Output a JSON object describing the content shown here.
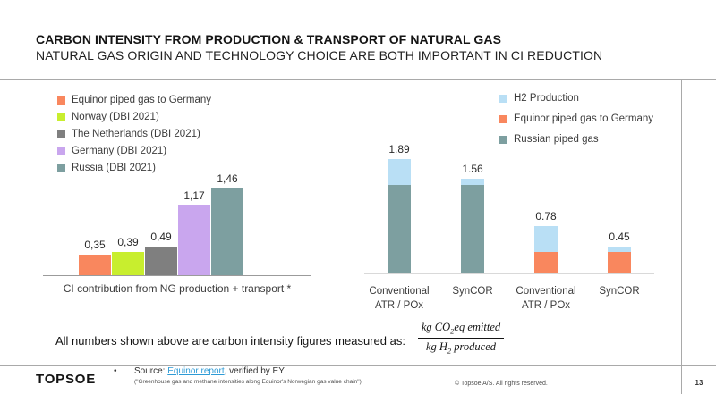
{
  "slide": {
    "title": "CARBON INTENSITY FROM PRODUCTION & TRANSPORT OF NATURAL GAS",
    "subtitle": "NATURAL GAS ORIGIN AND TECHNOLOGY CHOICE ARE BOTH IMPORTANT IN CI REDUCTION"
  },
  "colors": {
    "orange": "#F9875E",
    "lime": "#C8EE2E",
    "gray": "#7F7F7F",
    "purple": "#C9A6EE",
    "teal": "#7D9FA0",
    "lightblue": "#B9DFF5",
    "link_blue": "#2E9BD6"
  },
  "legend_left": {
    "items": [
      {
        "label": "Equinor piped gas to Germany",
        "color": "#F9875E"
      },
      {
        "label": "Norway (DBI 2021)",
        "color": "#C8EE2E"
      },
      {
        "label": "The Netherlands (DBI 2021)",
        "color": "#7F7F7F"
      },
      {
        "label": "Germany (DBI 2021)",
        "color": "#C9A6EE"
      },
      {
        "label": "Russia (DBI 2021)",
        "color": "#7D9FA0"
      }
    ]
  },
  "legend_right": {
    "items": [
      {
        "label": "H2 Production",
        "color": "#B9DFF5"
      },
      {
        "label": "Equinor piped gas to Germany",
        "color": "#F9875E"
      },
      {
        "label": "Russian piped gas",
        "color": "#7D9FA0"
      }
    ]
  },
  "chart_data": [
    {
      "type": "bar",
      "title": "",
      "xlabel": "CI contribution from NG production + transport *",
      "ylabel": "",
      "categories": [
        "Equinor piped gas to Germany",
        "Norway (DBI 2021)",
        "The Netherlands (DBI 2021)",
        "Germany (DBI 2021)",
        "Russia (DBI 2021)"
      ],
      "values": [
        0.35,
        0.39,
        0.49,
        1.17,
        1.46
      ],
      "value_labels": [
        "0,35",
        "0,39",
        "0,49",
        "1,17",
        "1,46"
      ],
      "bar_colors": [
        "#F9875E",
        "#C8EE2E",
        "#7F7F7F",
        "#C9A6EE",
        "#7D9FA0"
      ],
      "ylim": [
        0,
        2.0
      ],
      "grid": false,
      "legend_position": "top-left"
    },
    {
      "type": "bar",
      "stacked": true,
      "title": "",
      "xlabel": "",
      "ylabel": "",
      "categories": [
        "Conventional ATR / POx",
        "SynCOR",
        "Conventional ATR / POx",
        "SynCOR"
      ],
      "category_lines": [
        [
          "Conventional",
          "ATR / POx"
        ],
        [
          "SynCOR"
        ],
        [
          "Conventional",
          "ATR / POx"
        ],
        [
          "SynCOR"
        ]
      ],
      "series": [
        {
          "name": "Russian piped gas",
          "color": "#7D9FA0",
          "values": [
            1.46,
            1.46,
            0,
            0
          ]
        },
        {
          "name": "Equinor piped gas to Germany",
          "color": "#F9875E",
          "values": [
            0,
            0,
            0.35,
            0.35
          ]
        },
        {
          "name": "H2 Production",
          "color": "#B9DFF5",
          "values": [
            0.43,
            0.1,
            0.43,
            0.1
          ]
        }
      ],
      "totals": [
        1.89,
        1.56,
        0.78,
        0.45
      ],
      "total_labels": [
        "1.89",
        "1.56",
        "0.78",
        "0.45"
      ],
      "ylim": [
        0,
        2.0
      ],
      "grid": false,
      "legend_position": "top-right"
    }
  ],
  "formula": {
    "lead": "All numbers shown above are carbon intensity figures measured as:",
    "num_pre": "kg CO",
    "num_sub": "2",
    "num_post": "eq emitted",
    "den_pre": "kg H",
    "den_sub": "2",
    "den_post": " produced"
  },
  "footer": {
    "logo": "TOPSOE",
    "bullet": "•",
    "source_prefix": "Source: ",
    "source_link": "Equinor report",
    "source_suffix": ", verified by EY",
    "source_note": "(\"Greenhouse gas and methane intensities along Equinor's Norwegian gas value chain\")",
    "copyright": "© Topsoe A/S. All rights reserved.",
    "page_number": "13"
  }
}
